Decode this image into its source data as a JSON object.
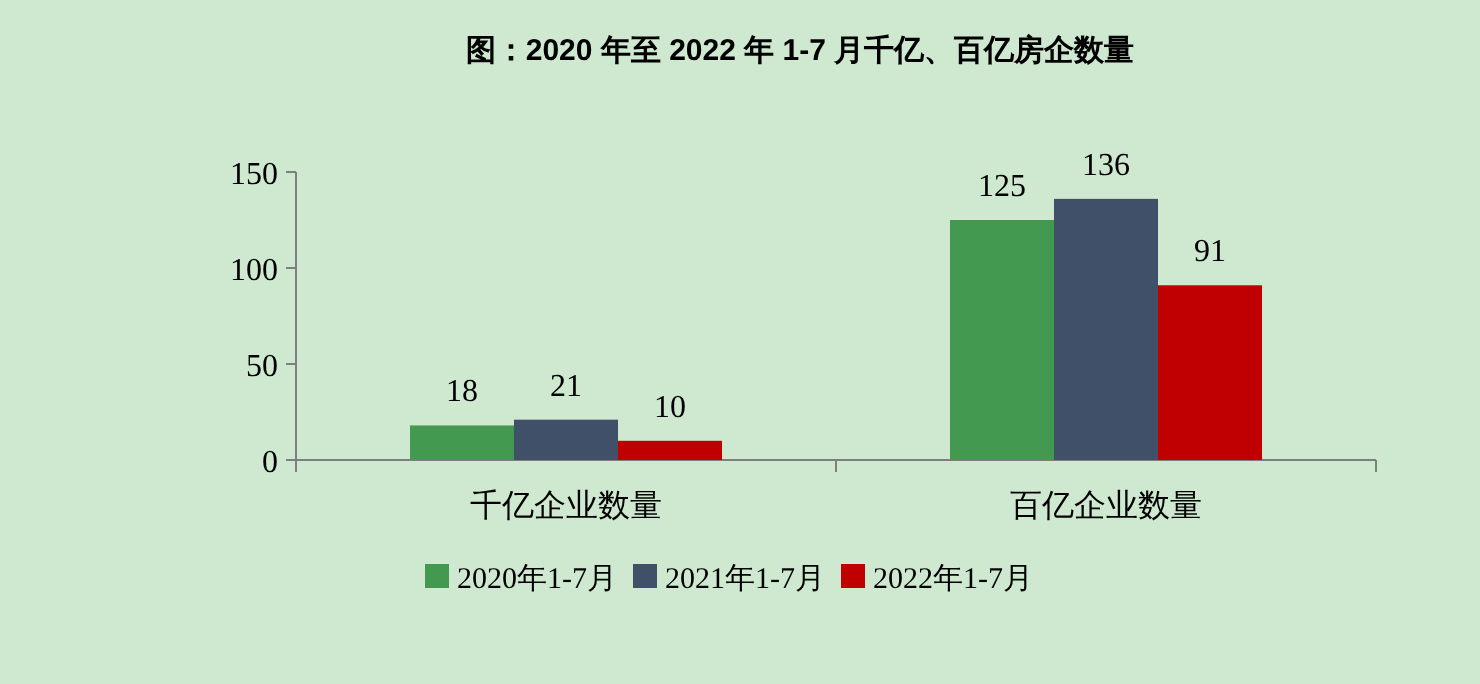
{
  "chart_data": {
    "type": "bar",
    "title": "图：2020 年至 2022 年 1-7 月千亿、百亿房企数量",
    "categories": [
      "千亿企业数量",
      "百亿企业数量"
    ],
    "series": [
      {
        "name": "2020年1-7月",
        "color": "#43994f",
        "values": [
          18,
          125
        ]
      },
      {
        "name": "2021年1-7月",
        "color": "#3f5068",
        "values": [
          21,
          136
        ]
      },
      {
        "name": "2022年1-7月",
        "color": "#c00000",
        "values": [
          10,
          91
        ]
      }
    ],
    "ylim": [
      0,
      150
    ],
    "yticks": [
      0,
      50,
      100,
      150
    ],
    "data_labels": true,
    "grid": false,
    "legend": "bottom"
  }
}
